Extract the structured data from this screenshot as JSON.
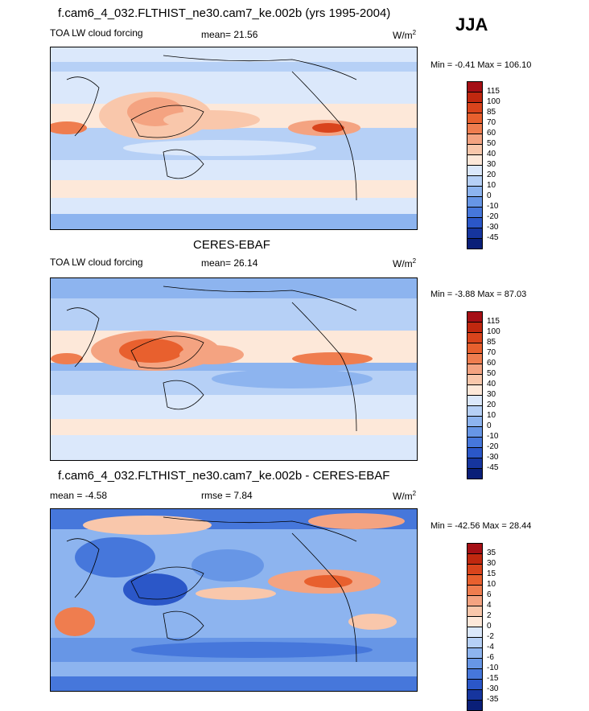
{
  "header": {
    "season": "JJA"
  },
  "panels": [
    {
      "title": "f.cam6_4_032.FLTHIST_ne30.cam7_ke.002b (yrs 1995-2004)",
      "left_label": "TOA LW cloud forcing",
      "center_label": "mean=  21.56",
      "units": "W/m",
      "units_sup": "2",
      "minmax": "Min =  -0.41 Max = 106.10",
      "levels": [
        "115",
        "100",
        "85",
        "70",
        "60",
        "50",
        "40",
        "30",
        "20",
        "10",
        "0",
        "-10",
        "-20",
        "-30",
        "-45"
      ],
      "colors": [
        "#a50f15",
        "#c0280f",
        "#d9441c",
        "#e8602e",
        "#ef7d4f",
        "#f4a381",
        "#f9c7ab",
        "#fde8d9",
        "#dbe8fb",
        "#b6d0f6",
        "#8db4ef",
        "#6796e6",
        "#4677db",
        "#2b57c8",
        "#16359e",
        "#0a1f78"
      ]
    },
    {
      "title": "CERES-EBAF",
      "left_label": "TOA LW cloud forcing",
      "center_label": "mean=  26.14",
      "units": "W/m",
      "units_sup": "2",
      "minmax": "Min =  -3.88 Max =  87.03",
      "levels": [
        "115",
        "100",
        "85",
        "70",
        "60",
        "50",
        "40",
        "30",
        "20",
        "10",
        "0",
        "-10",
        "-20",
        "-30",
        "-45"
      ],
      "colors": [
        "#a50f15",
        "#c0280f",
        "#d9441c",
        "#e8602e",
        "#ef7d4f",
        "#f4a381",
        "#f9c7ab",
        "#fde8d9",
        "#dbe8fb",
        "#b6d0f6",
        "#8db4ef",
        "#6796e6",
        "#4677db",
        "#2b57c8",
        "#16359e",
        "#0a1f78"
      ]
    },
    {
      "title": "f.cam6_4_032.FLTHIST_ne30.cam7_ke.002b - CERES-EBAF",
      "left_label": "mean =  -4.58",
      "center_label": "rmse =   7.84",
      "units": "W/m",
      "units_sup": "2",
      "minmax": "Min = -42.56 Max =  28.44",
      "levels": [
        "35",
        "30",
        "15",
        "10",
        "6",
        "4",
        "2",
        "0",
        "-2",
        "-4",
        "-6",
        "-10",
        "-15",
        "-30",
        "-35"
      ],
      "colors": [
        "#a50f15",
        "#c0280f",
        "#d9441c",
        "#e8602e",
        "#ef7d4f",
        "#f4a381",
        "#f9c7ab",
        "#fde8d9",
        "#dbe8fb",
        "#b6d0f6",
        "#8db4ef",
        "#6796e6",
        "#4677db",
        "#2b57c8",
        "#16359e",
        "#0a1f78"
      ]
    }
  ],
  "map_style": {
    "bg": "#b9d3f5",
    "warm": "#f4a381",
    "hot": "#e8602e",
    "cool": "#8db4ef",
    "cold": "#4677db",
    "pale": "#fde8d9",
    "coast": "#000000"
  }
}
